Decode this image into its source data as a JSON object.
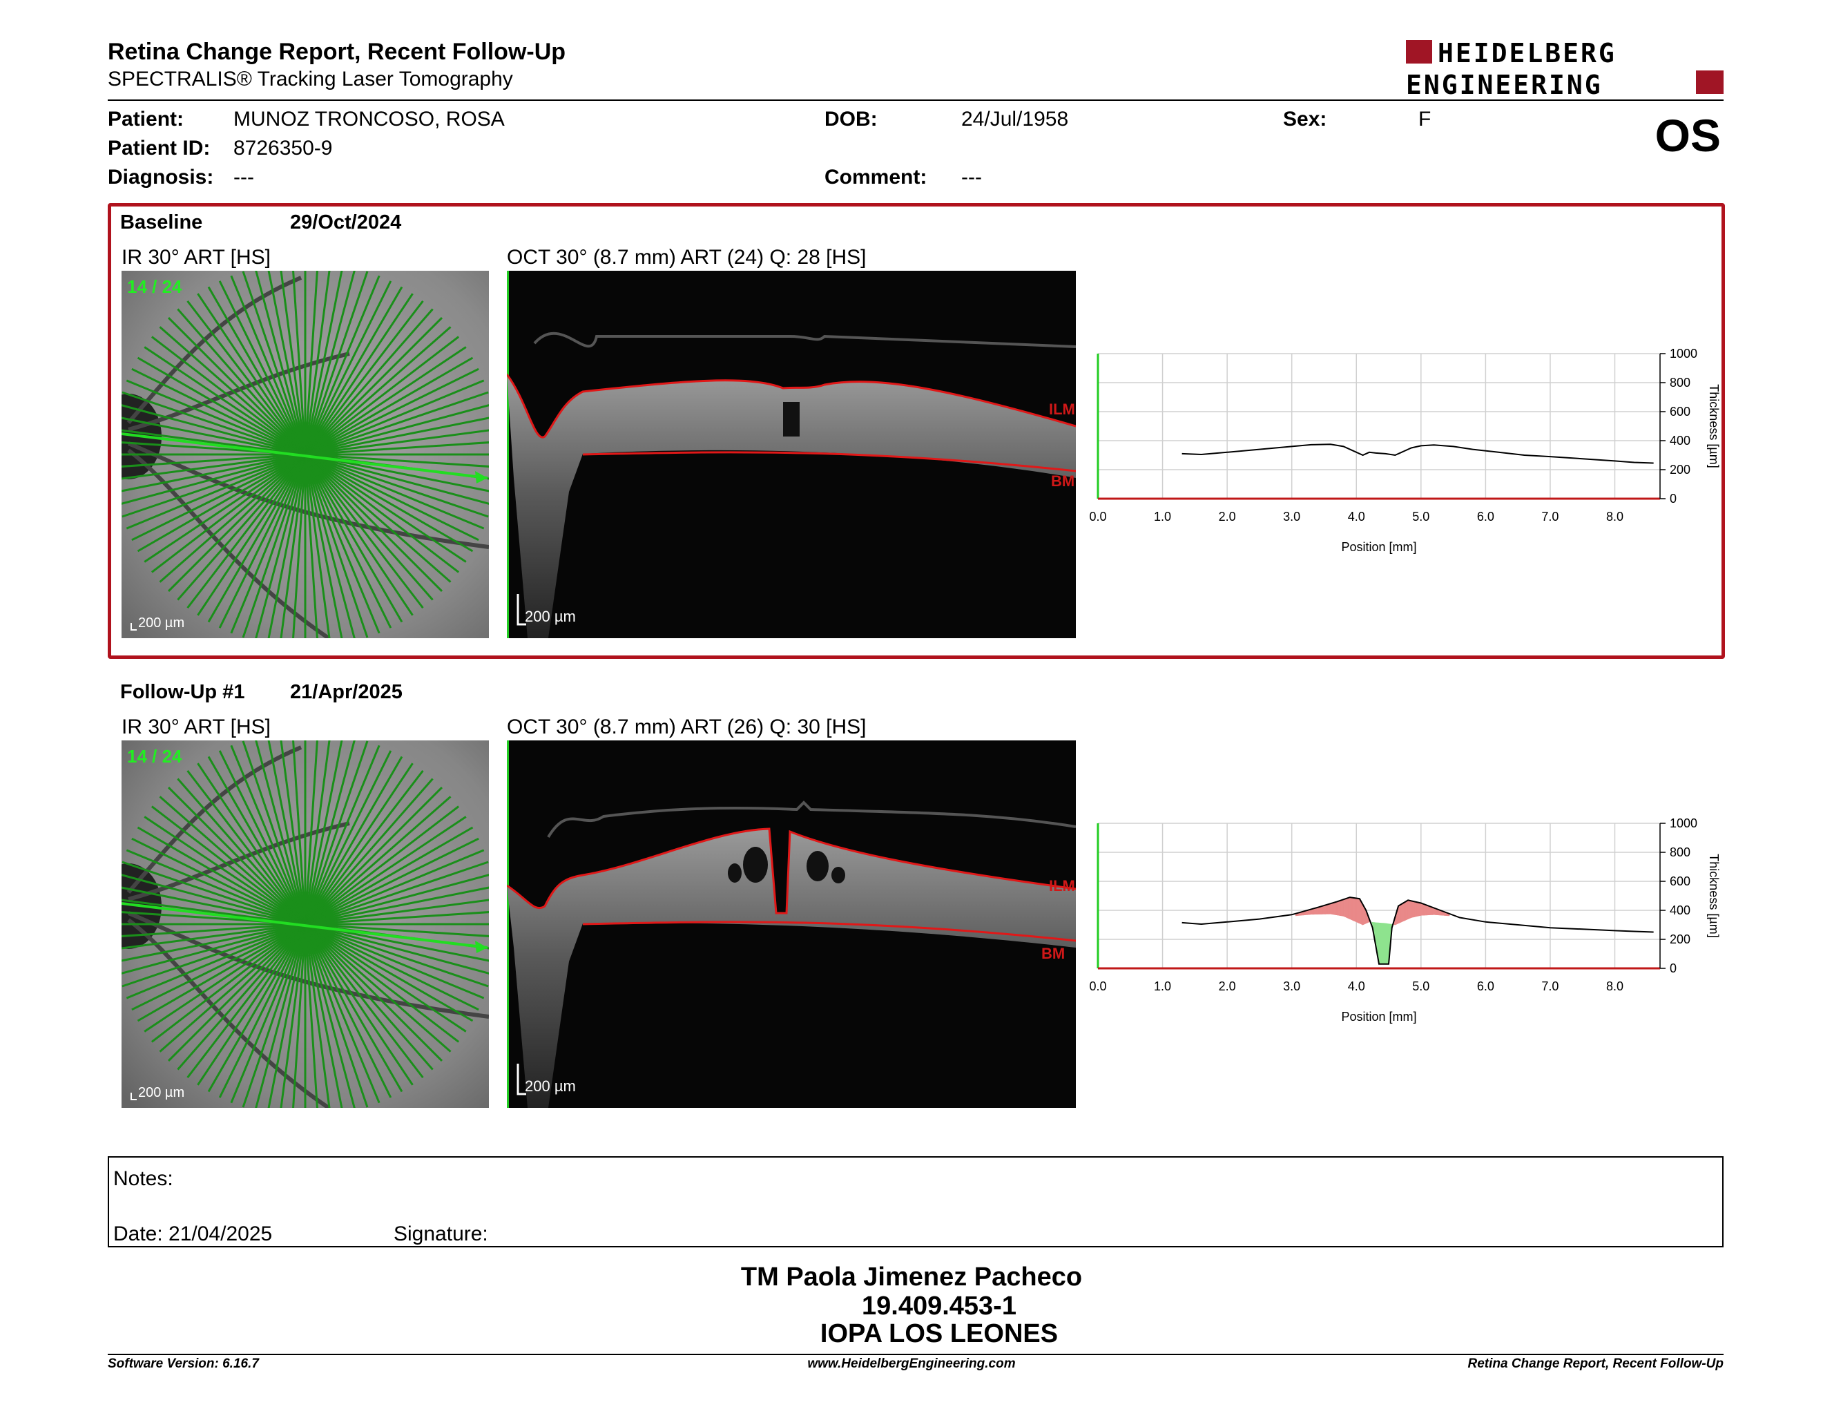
{
  "header": {
    "title": "Retina Change Report, Recent Follow-Up",
    "subtitle": "SPECTRALIS® Tracking Laser Tomography",
    "logo_line1": "HEIDELBERG",
    "logo_line2": "ENGINEERING",
    "eye": "OS"
  },
  "patient": {
    "patient_label": "Patient:",
    "patient_value": "MUNOZ TRONCOSO, ROSA",
    "id_label": "Patient ID:",
    "id_value": "8726350-9",
    "diagnosis_label": "Diagnosis:",
    "diagnosis_value": "---",
    "dob_label": "DOB:",
    "dob_value": "24/Jul/1958",
    "comment_label": "Comment:",
    "comment_value": "---",
    "sex_label": "Sex:",
    "sex_value": "F"
  },
  "baseline": {
    "label": "Baseline",
    "date": "29/Oct/2024",
    "ir_title": "IR 30° ART [HS]",
    "ir_counter": "14 / 24",
    "ir_scale": "200 µm",
    "oct_title": "OCT 30° (8.7 mm) ART (24) Q: 28 [HS]",
    "oct_scale": "200 µm",
    "ilm": "ILM",
    "bm": "BM"
  },
  "followup": {
    "label": "Follow-Up #1",
    "date": "21/Apr/2025",
    "ir_title": "IR 30° ART [HS]",
    "ir_counter": "14 / 24",
    "ir_scale": "200 µm",
    "oct_title": "OCT 30° (8.7 mm) ART (26) Q: 30 [HS]",
    "oct_scale": "200 µm",
    "ilm": "ILM",
    "bm": "BM"
  },
  "chart_data": [
    {
      "type": "line",
      "xlabel": "Position [mm]",
      "ylabel": "Thickness [µm]",
      "xlim": [
        0,
        8.7
      ],
      "ylim": [
        0,
        1000
      ],
      "xticks": [
        "0.0",
        "1.0",
        "2.0",
        "3.0",
        "4.0",
        "5.0",
        "6.0",
        "7.0",
        "8.0"
      ],
      "yticks": [
        "0",
        "200",
        "400",
        "600",
        "800",
        "1000"
      ],
      "series": [
        {
          "x": [
            1.3,
            1.6,
            2.0,
            2.5,
            3.0,
            3.3,
            3.6,
            3.8,
            3.95,
            4.1,
            4.2,
            4.3,
            4.45,
            4.6,
            4.7,
            4.85,
            5.0,
            5.2,
            5.5,
            5.8,
            6.2,
            6.6,
            7.0,
            7.5,
            8.0,
            8.3,
            8.6
          ],
          "values": [
            310,
            305,
            320,
            340,
            360,
            372,
            375,
            360,
            330,
            300,
            320,
            315,
            310,
            300,
            320,
            350,
            365,
            370,
            360,
            340,
            320,
            300,
            290,
            275,
            260,
            250,
            245
          ]
        }
      ]
    },
    {
      "type": "line",
      "xlabel": "Position [mm]",
      "ylabel": "Thickness [µm]",
      "xlim": [
        0,
        8.7
      ],
      "ylim": [
        0,
        1000
      ],
      "xticks": [
        "0.0",
        "1.0",
        "2.0",
        "3.0",
        "4.0",
        "5.0",
        "6.0",
        "7.0",
        "8.0"
      ],
      "yticks": [
        "0",
        "200",
        "400",
        "600",
        "800",
        "1000"
      ],
      "series": [
        {
          "x": [
            1.3,
            1.6,
            2.0,
            2.5,
            3.0,
            3.4,
            3.7,
            3.9,
            4.05,
            4.15,
            4.25,
            4.35,
            4.5,
            4.55,
            4.65,
            4.8,
            5.0,
            5.3,
            5.6,
            6.0,
            6.5,
            7.0,
            7.5,
            8.0,
            8.3,
            8.6
          ],
          "values": [
            315,
            305,
            320,
            340,
            370,
            420,
            460,
            490,
            480,
            400,
            280,
            30,
            30,
            280,
            430,
            470,
            450,
            400,
            350,
            320,
            300,
            280,
            270,
            260,
            255,
            250
          ]
        },
        {
          "x": [
            1.3,
            1.6,
            2.0,
            2.5,
            3.0,
            3.3,
            3.6,
            3.8,
            3.95,
            4.1,
            4.2,
            4.3,
            4.45,
            4.6,
            4.7,
            4.85,
            5.0,
            5.2,
            5.5,
            5.8,
            6.2,
            6.6,
            7.0,
            7.5,
            8.0,
            8.3,
            8.6
          ],
          "values": [
            310,
            305,
            320,
            340,
            360,
            372,
            375,
            360,
            330,
            300,
            320,
            315,
            310,
            300,
            320,
            350,
            365,
            370,
            360,
            340,
            320,
            300,
            290,
            275,
            260,
            250,
            245
          ]
        }
      ]
    }
  ],
  "notes": {
    "notes_label": "Notes:",
    "date_label": "Date: 21/04/2025",
    "signature_label": "Signature:"
  },
  "signature_block": {
    "name": "TM Paola Jimenez Pacheco",
    "rut": "19.409.453-1",
    "place": "IOPA LOS LEONES"
  },
  "footer": {
    "left": "Software Version: 6.16.7",
    "center": "www.HeidelbergEngineering.com",
    "right": "Retina Change Report, Recent Follow-Up"
  },
  "colors": {
    "accent_red": "#b0121d",
    "scan_green": "#1d9a1d",
    "increase_fill": "#e98989",
    "decrease_fill": "#8ee38e"
  }
}
